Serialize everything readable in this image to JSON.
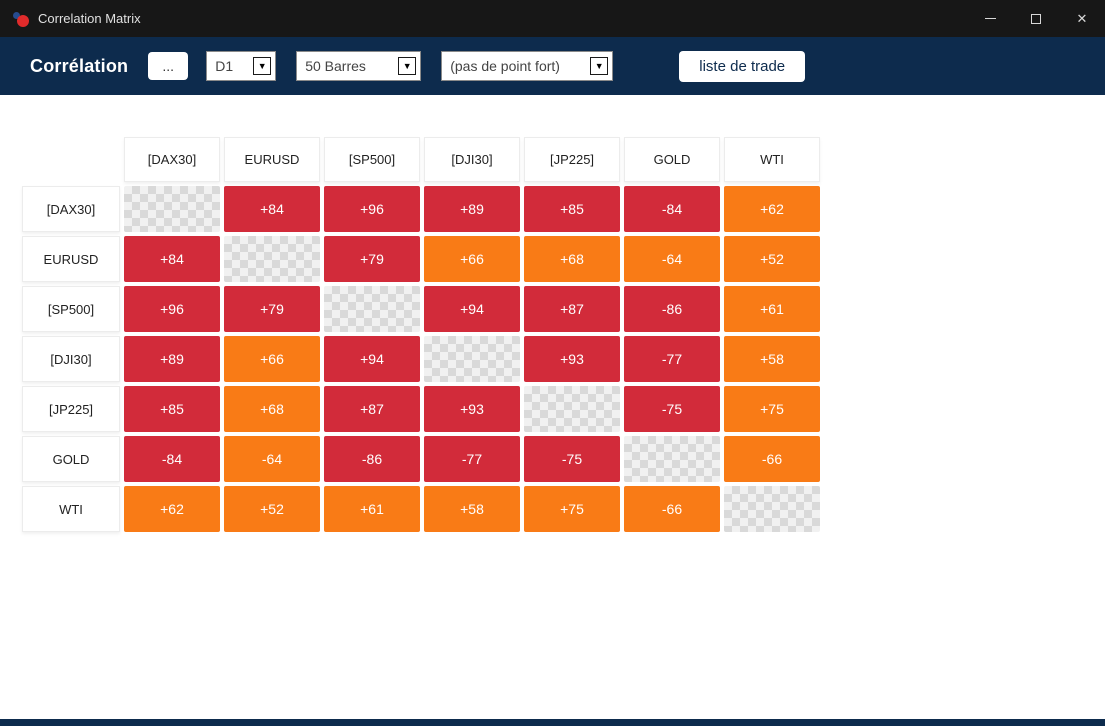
{
  "window": {
    "title": "Correlation Matrix",
    "close_glyph": "✕"
  },
  "toolbar": {
    "title": "Corrélation",
    "more_button_label": "...",
    "timeframe_value": "D1",
    "bars_value": "50 Barres",
    "filter_value": "(pas de point fort)",
    "trade_list_label": "liste de trade",
    "chevron_glyph": "▼"
  },
  "matrix": {
    "symbols": [
      "[DAX30]",
      "EURUSD",
      "[SP500]",
      "[DJI30]",
      "[JP225]",
      "GOLD",
      "WTI"
    ],
    "colors": {
      "strong": "#d22b3a",
      "moderate": "#f97b16"
    },
    "rows": [
      [
        null,
        {
          "v": "+84",
          "l": "strong"
        },
        {
          "v": "+96",
          "l": "strong"
        },
        {
          "v": "+89",
          "l": "strong"
        },
        {
          "v": "+85",
          "l": "strong"
        },
        {
          "v": "-84",
          "l": "strong"
        },
        {
          "v": "+62",
          "l": "moderate"
        }
      ],
      [
        {
          "v": "+84",
          "l": "strong"
        },
        null,
        {
          "v": "+79",
          "l": "strong"
        },
        {
          "v": "+66",
          "l": "moderate"
        },
        {
          "v": "+68",
          "l": "moderate"
        },
        {
          "v": "-64",
          "l": "moderate"
        },
        {
          "v": "+52",
          "l": "moderate"
        }
      ],
      [
        {
          "v": "+96",
          "l": "strong"
        },
        {
          "v": "+79",
          "l": "strong"
        },
        null,
        {
          "v": "+94",
          "l": "strong"
        },
        {
          "v": "+87",
          "l": "strong"
        },
        {
          "v": "-86",
          "l": "strong"
        },
        {
          "v": "+61",
          "l": "moderate"
        }
      ],
      [
        {
          "v": "+89",
          "l": "strong"
        },
        {
          "v": "+66",
          "l": "moderate"
        },
        {
          "v": "+94",
          "l": "strong"
        },
        null,
        {
          "v": "+93",
          "l": "strong"
        },
        {
          "v": "-77",
          "l": "strong"
        },
        {
          "v": "+58",
          "l": "moderate"
        }
      ],
      [
        {
          "v": "+85",
          "l": "strong"
        },
        {
          "v": "+68",
          "l": "moderate"
        },
        {
          "v": "+87",
          "l": "strong"
        },
        {
          "v": "+93",
          "l": "strong"
        },
        null,
        {
          "v": "-75",
          "l": "strong"
        },
        {
          "v": "+75",
          "l": "moderate"
        }
      ],
      [
        {
          "v": "-84",
          "l": "strong"
        },
        {
          "v": "-64",
          "l": "moderate"
        },
        {
          "v": "-86",
          "l": "strong"
        },
        {
          "v": "-77",
          "l": "strong"
        },
        {
          "v": "-75",
          "l": "strong"
        },
        null,
        {
          "v": "-66",
          "l": "moderate"
        }
      ],
      [
        {
          "v": "+62",
          "l": "moderate"
        },
        {
          "v": "+52",
          "l": "moderate"
        },
        {
          "v": "+61",
          "l": "moderate"
        },
        {
          "v": "+58",
          "l": "moderate"
        },
        {
          "v": "+75",
          "l": "moderate"
        },
        {
          "v": "-66",
          "l": "moderate"
        },
        null
      ]
    ]
  }
}
